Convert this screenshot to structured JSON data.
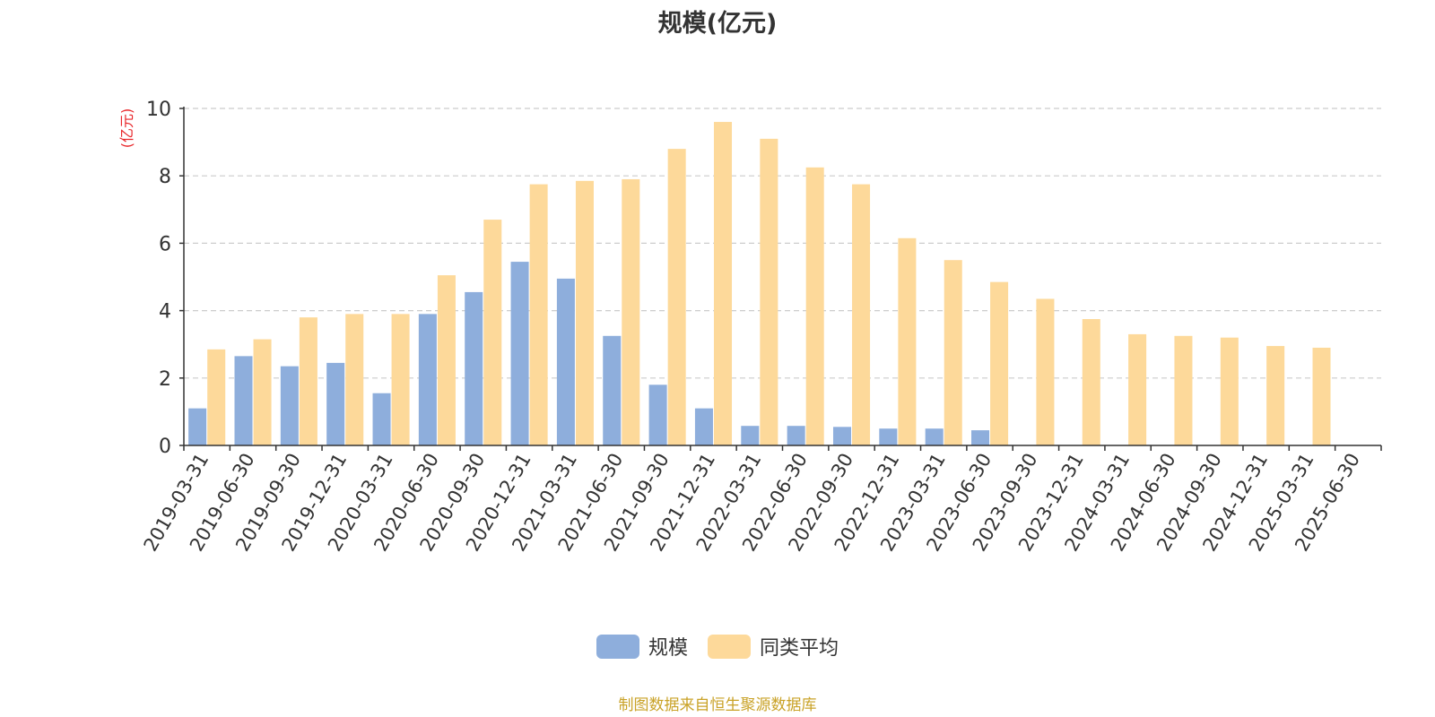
{
  "chart_data": {
    "type": "bar",
    "title": "规模(亿元)",
    "ylabel": "(亿元)",
    "xlabel": "",
    "ylim": [
      0,
      10
    ],
    "yticks": [
      0,
      2,
      4,
      6,
      8,
      10
    ],
    "grid": true,
    "legend_position": "bottom-center",
    "categories": [
      "2019-03-31",
      "2019-06-30",
      "2019-09-30",
      "2019-12-31",
      "2020-03-31",
      "2020-06-30",
      "2020-09-30",
      "2020-12-31",
      "2021-03-31",
      "2021-06-30",
      "2021-09-30",
      "2021-12-31",
      "2022-03-31",
      "2022-06-30",
      "2022-09-30",
      "2022-12-31",
      "2023-03-31",
      "2023-06-30",
      "2023-09-30",
      "2023-12-31",
      "2024-03-31",
      "2024-06-30",
      "2024-09-30",
      "2024-12-31",
      "2025-03-31",
      "2025-06-30"
    ],
    "series": [
      {
        "name": "规模",
        "color": "#8eaedc",
        "values": [
          1.1,
          2.65,
          2.35,
          2.45,
          1.55,
          3.9,
          4.55,
          5.45,
          4.95,
          3.25,
          1.8,
          1.1,
          0.58,
          0.58,
          0.55,
          0.5,
          0.5,
          0.45,
          null,
          null,
          null,
          null,
          null,
          null,
          null,
          null
        ]
      },
      {
        "name": "同类平均",
        "color": "#fdd99a",
        "values": [
          2.85,
          3.15,
          3.8,
          3.9,
          3.9,
          5.05,
          6.7,
          7.75,
          7.85,
          7.9,
          8.8,
          9.6,
          9.1,
          8.25,
          7.75,
          6.15,
          5.5,
          4.85,
          4.35,
          3.75,
          3.3,
          3.25,
          3.2,
          2.95,
          2.9,
          null
        ]
      }
    ],
    "source_note": "制图数据来自恒生聚源数据库"
  },
  "colors": {
    "axis": "#333333",
    "grid": "#cccccc",
    "ylabel": "#e8262a",
    "source": "#c9a227"
  }
}
